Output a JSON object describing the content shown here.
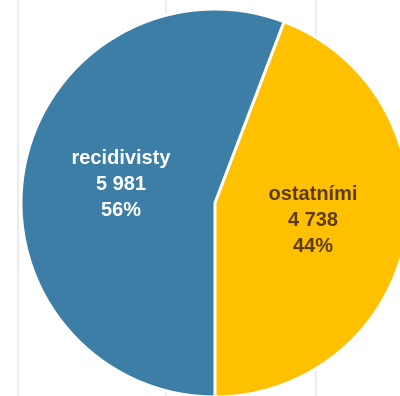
{
  "chart_data": {
    "type": "pie",
    "title": "",
    "slices": [
      {
        "label": "recidivisty",
        "value": 5981,
        "value_text": "5 981",
        "percent": 56,
        "percent_text": "56%",
        "color": "#3d7ea6",
        "label_color": "#ffffff"
      },
      {
        "label": "ostatními",
        "value": 4738,
        "value_text": "4 738",
        "percent": 44,
        "percent_text": "44%",
        "color": "#ffc000",
        "label_color": "#5c3a12"
      }
    ],
    "slice_border_color": "#ffffff",
    "gridline_color": "#d9d9d9",
    "legend": "none",
    "grid": true
  }
}
